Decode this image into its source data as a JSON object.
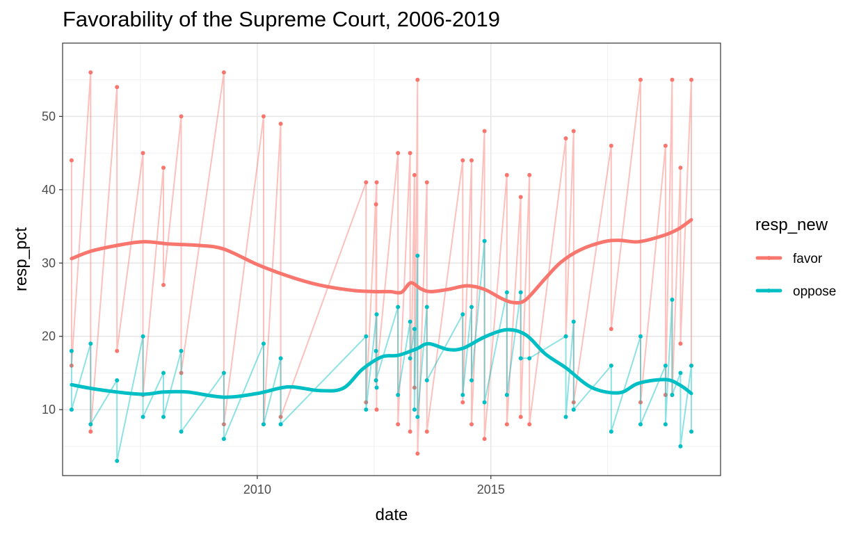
{
  "chart_data": {
    "type": "line",
    "title": "Favorability of the Supreme Court, 2006-2019",
    "xlabel": "date",
    "ylabel": "resp_pct",
    "legend_title": "resp_new",
    "legend_position": "right",
    "grid": true,
    "xlim": [
      "2005-11-01",
      "2019-12-01"
    ],
    "ylim": [
      1,
      60
    ],
    "x_ticks": [
      {
        "date": "2010-01-01",
        "label": "2010"
      },
      {
        "date": "2015-01-01",
        "label": "2015"
      }
    ],
    "y_ticks": [
      10,
      20,
      30,
      40,
      50
    ],
    "series": [
      {
        "name": "favor",
        "color": "#F8766D",
        "points": [
          [
            "2006-01-10",
            44
          ],
          [
            "2006-01-10",
            16
          ],
          [
            "2006-06-08",
            56
          ],
          [
            "2006-06-08",
            7
          ],
          [
            "2006-12-31",
            54
          ],
          [
            "2006-12-31",
            18
          ],
          [
            "2007-07-22",
            45
          ],
          [
            "2007-07-22",
            12
          ],
          [
            "2007-12-29",
            43
          ],
          [
            "2007-12-29",
            27
          ],
          [
            "2008-05-16",
            50
          ],
          [
            "2008-05-16",
            15
          ],
          [
            "2009-04-15",
            56
          ],
          [
            "2009-04-15",
            8
          ],
          [
            "2010-02-19",
            50
          ],
          [
            "2010-02-19",
            8
          ],
          [
            "2010-07-03",
            49
          ],
          [
            "2010-07-03",
            9
          ],
          [
            "2012-04-30",
            41
          ],
          [
            "2012-04-30",
            11
          ],
          [
            "2012-07-22",
            41
          ],
          [
            "2012-07-22",
            10
          ],
          [
            "2012-07-17",
            38
          ],
          [
            "2012-07-17",
            14
          ],
          [
            "2013-01-05",
            45
          ],
          [
            "2013-01-05",
            8
          ],
          [
            "2013-04-10",
            45
          ],
          [
            "2013-04-10",
            7
          ],
          [
            "2013-05-14",
            42
          ],
          [
            "2013-05-14",
            13
          ],
          [
            "2013-06-07",
            55
          ],
          [
            "2013-06-07",
            4
          ],
          [
            "2013-08-19",
            41
          ],
          [
            "2013-08-19",
            7
          ],
          [
            "2014-05-26",
            44
          ],
          [
            "2014-05-26",
            11
          ],
          [
            "2014-08-03",
            44
          ],
          [
            "2014-08-03",
            8
          ],
          [
            "2014-11-12",
            48
          ],
          [
            "2014-11-12",
            6
          ],
          [
            "2015-05-06",
            42
          ],
          [
            "2015-05-06",
            8
          ],
          [
            "2015-08-22",
            39
          ],
          [
            "2015-08-22",
            9
          ],
          [
            "2015-10-29",
            42
          ],
          [
            "2015-10-29",
            8
          ],
          [
            "2016-08-09",
            47
          ],
          [
            "2016-08-09",
            20
          ],
          [
            "2016-10-09",
            48
          ],
          [
            "2016-10-09",
            11
          ],
          [
            "2017-07-30",
            46
          ],
          [
            "2017-07-30",
            21
          ],
          [
            "2018-03-16",
            55
          ],
          [
            "2018-03-16",
            11
          ],
          [
            "2018-09-27",
            46
          ],
          [
            "2018-09-27",
            12
          ],
          [
            "2018-11-18",
            55
          ],
          [
            "2018-11-18",
            12
          ],
          [
            "2019-01-22",
            43
          ],
          [
            "2019-01-22",
            19
          ],
          [
            "2019-04-17",
            55
          ],
          [
            "2019-04-17",
            16
          ]
        ],
        "smooth": [
          [
            "2006-01-10",
            30.6
          ],
          [
            "2006-06-08",
            31.6
          ],
          [
            "2006-12-31",
            32.4
          ],
          [
            "2007-07-22",
            32.9
          ],
          [
            "2008-02-15",
            32.6
          ],
          [
            "2008-10-05",
            32.4
          ],
          [
            "2009-04-15",
            31.9
          ],
          [
            "2010-01-01",
            29.8
          ],
          [
            "2010-09-01",
            28.2
          ],
          [
            "2011-05-01",
            27.0
          ],
          [
            "2012-01-01",
            26.3
          ],
          [
            "2012-07-01",
            26.1
          ],
          [
            "2012-11-01",
            26.1
          ],
          [
            "2013-02-01",
            26.0
          ],
          [
            "2013-04-15",
            27.3
          ],
          [
            "2013-07-01",
            26.5
          ],
          [
            "2013-09-15",
            26.1
          ],
          [
            "2014-02-01",
            26.4
          ],
          [
            "2014-07-01",
            26.9
          ],
          [
            "2014-11-12",
            26.4
          ],
          [
            "2015-04-01",
            25.1
          ],
          [
            "2015-07-01",
            24.6
          ],
          [
            "2015-10-01",
            25.0
          ],
          [
            "2016-03-01",
            27.9
          ],
          [
            "2016-07-01",
            30.1
          ],
          [
            "2016-12-01",
            31.8
          ],
          [
            "2017-06-01",
            32.9
          ],
          [
            "2017-10-01",
            33.1
          ],
          [
            "2018-03-01",
            32.9
          ],
          [
            "2018-09-01",
            33.7
          ],
          [
            "2019-01-01",
            34.6
          ],
          [
            "2019-04-17",
            35.9
          ]
        ]
      },
      {
        "name": "oppose",
        "color": "#00BFC4",
        "points": [
          [
            "2006-01-10",
            18
          ],
          [
            "2006-01-10",
            10
          ],
          [
            "2006-06-08",
            19
          ],
          [
            "2006-06-08",
            8
          ],
          [
            "2006-12-31",
            14
          ],
          [
            "2006-12-31",
            3
          ],
          [
            "2007-07-22",
            20
          ],
          [
            "2007-07-22",
            9
          ],
          [
            "2007-12-29",
            15
          ],
          [
            "2007-12-29",
            9
          ],
          [
            "2008-05-16",
            18
          ],
          [
            "2008-05-16",
            7
          ],
          [
            "2009-04-15",
            15
          ],
          [
            "2009-04-15",
            6
          ],
          [
            "2010-02-19",
            19
          ],
          [
            "2010-02-19",
            8
          ],
          [
            "2010-07-03",
            17
          ],
          [
            "2010-07-03",
            8
          ],
          [
            "2012-04-30",
            20
          ],
          [
            "2012-04-30",
            10
          ],
          [
            "2012-07-22",
            23
          ],
          [
            "2012-07-22",
            13
          ],
          [
            "2012-07-17",
            18
          ],
          [
            "2012-07-17",
            14
          ],
          [
            "2013-01-05",
            24
          ],
          [
            "2013-01-05",
            12
          ],
          [
            "2013-04-10",
            22
          ],
          [
            "2013-04-10",
            17
          ],
          [
            "2013-05-14",
            21
          ],
          [
            "2013-05-14",
            10
          ],
          [
            "2013-06-07",
            31
          ],
          [
            "2013-06-07",
            9
          ],
          [
            "2013-08-19",
            24
          ],
          [
            "2013-08-19",
            14
          ],
          [
            "2014-05-26",
            23
          ],
          [
            "2014-05-26",
            12
          ],
          [
            "2014-08-03",
            24
          ],
          [
            "2014-08-03",
            14
          ],
          [
            "2014-11-12",
            33
          ],
          [
            "2014-11-12",
            11
          ],
          [
            "2015-05-06",
            26
          ],
          [
            "2015-05-06",
            12
          ],
          [
            "2015-08-22",
            26
          ],
          [
            "2015-08-22",
            17
          ],
          [
            "2015-10-29",
            17
          ],
          [
            "2016-08-09",
            20
          ],
          [
            "2016-08-09",
            9
          ],
          [
            "2016-10-09",
            22
          ],
          [
            "2016-10-09",
            10
          ],
          [
            "2017-07-30",
            16
          ],
          [
            "2017-07-30",
            7
          ],
          [
            "2018-03-16",
            20
          ],
          [
            "2018-03-16",
            8
          ],
          [
            "2018-09-27",
            16
          ],
          [
            "2018-09-27",
            8
          ],
          [
            "2018-11-18",
            25
          ],
          [
            "2018-11-18",
            12
          ],
          [
            "2019-01-22",
            15
          ],
          [
            "2019-01-22",
            5
          ],
          [
            "2019-04-17",
            16
          ],
          [
            "2019-04-17",
            7
          ]
        ],
        "smooth": [
          [
            "2006-01-10",
            13.4
          ],
          [
            "2006-06-08",
            12.9
          ],
          [
            "2006-12-31",
            12.4
          ],
          [
            "2007-07-22",
            12.1
          ],
          [
            "2008-01-01",
            12.4
          ],
          [
            "2008-07-01",
            12.4
          ],
          [
            "2009-04-15",
            11.7
          ],
          [
            "2010-01-01",
            12.2
          ],
          [
            "2010-09-01",
            13.1
          ],
          [
            "2011-05-01",
            12.6
          ],
          [
            "2011-11-01",
            12.9
          ],
          [
            "2012-04-01",
            15.5
          ],
          [
            "2012-09-01",
            17.2
          ],
          [
            "2013-01-05",
            17.4
          ],
          [
            "2013-06-01",
            18.3
          ],
          [
            "2013-09-01",
            19.0
          ],
          [
            "2014-02-01",
            18.2
          ],
          [
            "2014-06-01",
            18.4
          ],
          [
            "2014-11-12",
            19.9
          ],
          [
            "2015-05-06",
            20.9
          ],
          [
            "2015-10-01",
            20.2
          ],
          [
            "2016-03-01",
            17.6
          ],
          [
            "2016-08-09",
            15.7
          ],
          [
            "2017-03-01",
            13.0
          ],
          [
            "2017-10-01",
            12.3
          ],
          [
            "2018-03-01",
            13.6
          ],
          [
            "2018-09-27",
            14.1
          ],
          [
            "2019-01-22",
            13.3
          ],
          [
            "2019-04-17",
            12.2
          ]
        ]
      }
    ]
  }
}
